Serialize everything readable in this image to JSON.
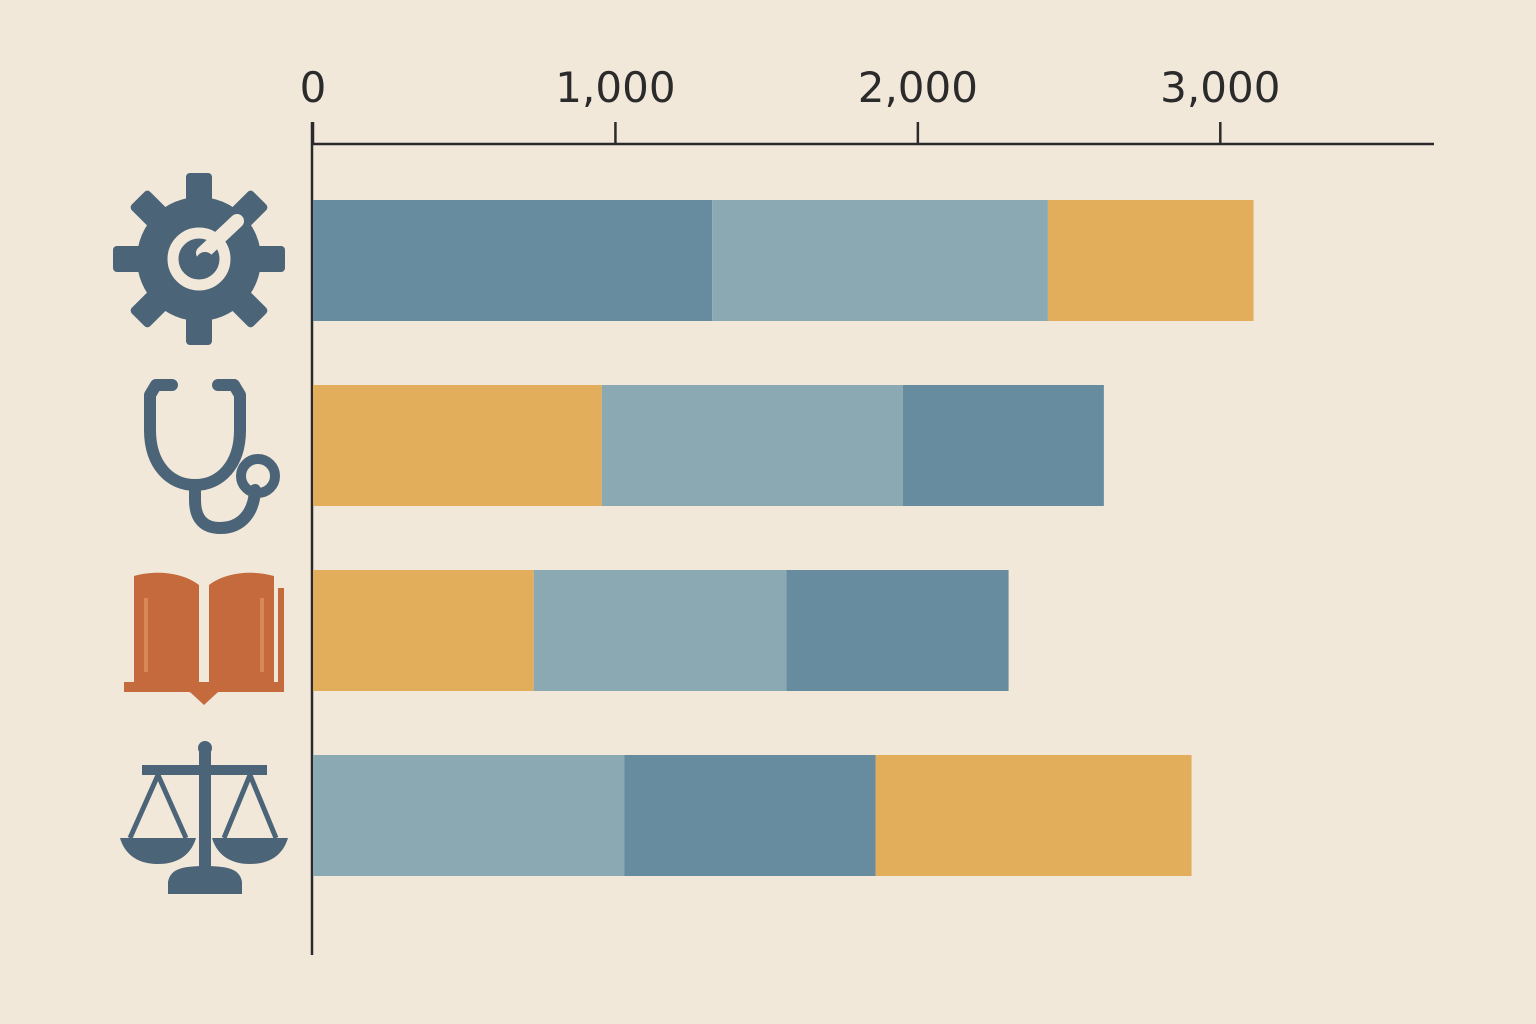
{
  "chart_data": {
    "type": "bar",
    "orientation": "horizontal",
    "stacked": true,
    "title": "",
    "xlabel": "",
    "ylabel": "",
    "x_axis_position": "top",
    "xlim": [
      0,
      3700
    ],
    "x_ticks": [
      0,
      1000,
      2000,
      3000
    ],
    "x_tick_labels": [
      "0",
      "1,000",
      "2,000",
      "3,000"
    ],
    "grid": false,
    "legend": "none",
    "categories": [
      {
        "icon": "gear-icon",
        "color": "#4b6478"
      },
      {
        "icon": "stethoscope-icon",
        "color": "#4b6478"
      },
      {
        "icon": "open-book-icon",
        "color": "#c46a3c"
      },
      {
        "icon": "scales-of-justice-icon",
        "color": "#4b6478"
      }
    ],
    "bars": [
      {
        "segments": [
          {
            "value": 1320,
            "color": "#688c9f"
          },
          {
            "value": 1110,
            "color": "#8aa9b3"
          },
          {
            "value": 680,
            "color": "#e2ae5b"
          }
        ]
      },
      {
        "segments": [
          {
            "value": 955,
            "color": "#e2ae5b"
          },
          {
            "value": 995,
            "color": "#8aa9b3"
          },
          {
            "value": 665,
            "color": "#688c9f"
          }
        ]
      },
      {
        "segments": [
          {
            "value": 730,
            "color": "#e2ae5b"
          },
          {
            "value": 835,
            "color": "#8aa9b3"
          },
          {
            "value": 735,
            "color": "#688c9f"
          }
        ]
      },
      {
        "segments": [
          {
            "value": 1030,
            "color": "#8aa9b3"
          },
          {
            "value": 830,
            "color": "#688c9f"
          },
          {
            "value": 1045,
            "color": "#e2ae5b"
          }
        ]
      }
    ]
  }
}
